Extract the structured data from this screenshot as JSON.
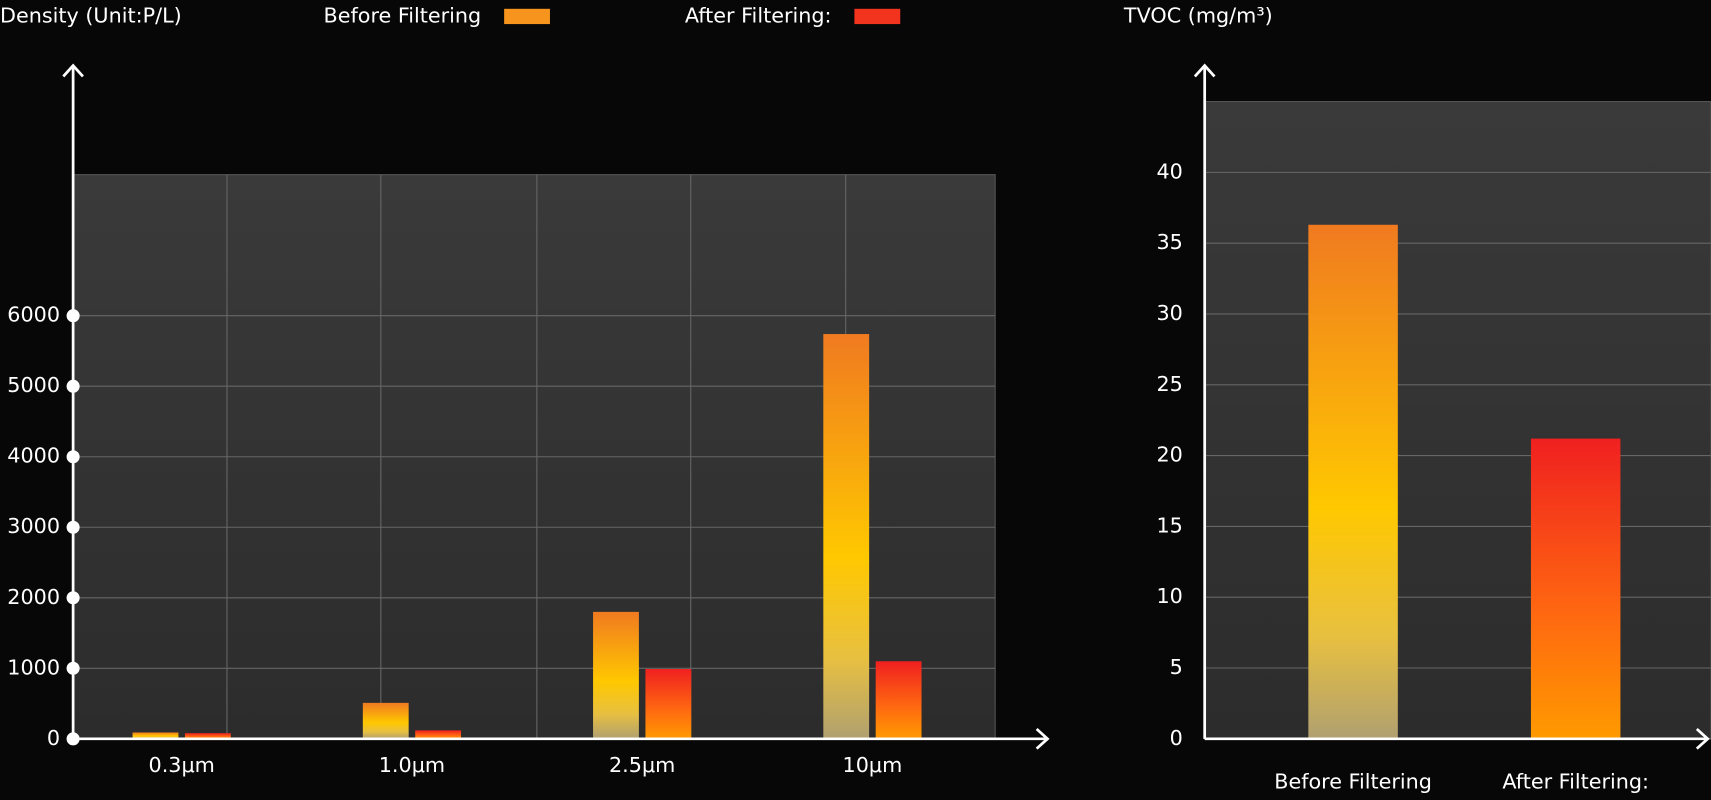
{
  "chart_data": [
    {
      "type": "bar",
      "title": "Density (Unit:P/L)",
      "categories": [
        "0.3μm",
        "1.0μm",
        "2.5μm",
        "10μm"
      ],
      "series": [
        {
          "name": "Before Filtering",
          "color": "#f7941d",
          "values": [
            90,
            510,
            1800,
            5740
          ]
        },
        {
          "name": "After Filtering:",
          "color": "#f2331e",
          "values": [
            80,
            120,
            990,
            1100
          ]
        }
      ],
      "ylim": [
        0,
        8000
      ],
      "yticks": [
        0,
        1000,
        2000,
        3000,
        4000,
        5000,
        6000
      ],
      "grid": true,
      "legend": "top"
    },
    {
      "type": "bar",
      "title": "TVOC (mg/m³)",
      "categories": [
        "Before Filtering",
        "After Filtering:"
      ],
      "values": [
        36.3,
        21.2
      ],
      "colors": [
        "#f7941d",
        "#f2331e"
      ],
      "ylim": [
        0,
        45
      ],
      "yticks": [
        0,
        5,
        10,
        15,
        20,
        25,
        30,
        35,
        40
      ],
      "grid": true
    }
  ]
}
